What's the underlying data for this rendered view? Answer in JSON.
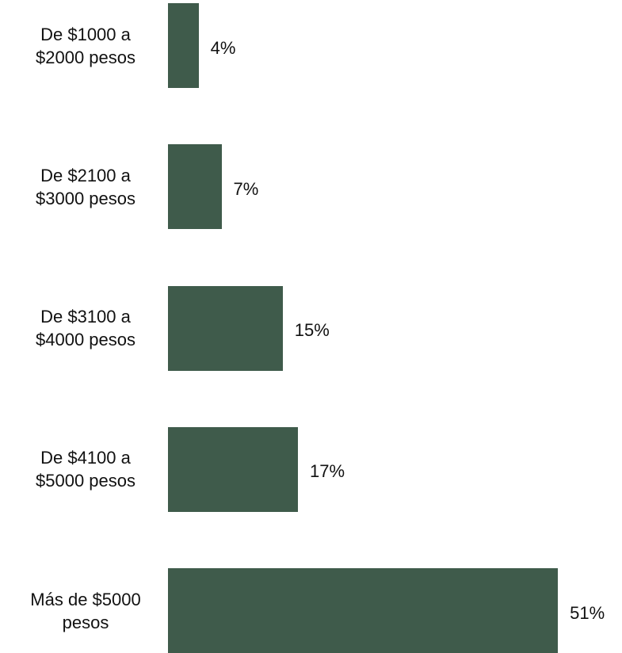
{
  "chart_data": {
    "type": "bar",
    "orientation": "horizontal",
    "categories": [
      "De $1000 a\n$2000 pesos",
      "De $2100 a\n$3000 pesos",
      "De $3100 a\n$4000 pesos",
      "De $4100 a\n$5000 pesos",
      "Más de $5000\npesos"
    ],
    "values": [
      4,
      7,
      15,
      17,
      51
    ],
    "value_labels": [
      "4%",
      "7%",
      "15%",
      "17%",
      "51%"
    ],
    "color": "#3f5b4b"
  }
}
